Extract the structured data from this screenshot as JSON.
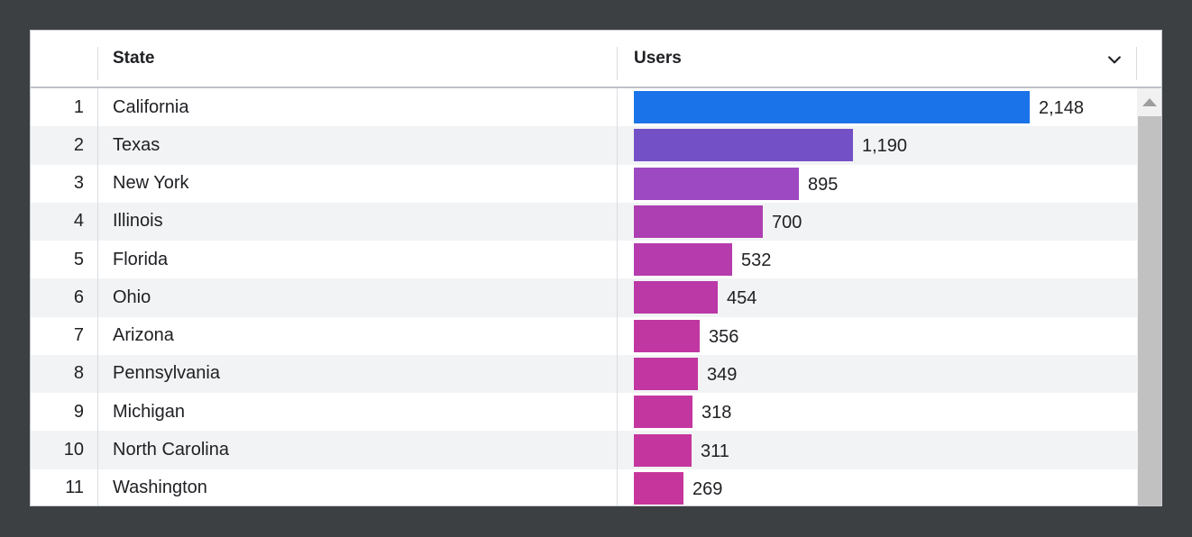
{
  "theme": {
    "surround_bg": "#3c4043",
    "card_bg": "#ffffff",
    "alt_row_bg": "#f1f3f4",
    "divider_color": "#dadce0",
    "header_border_color": "#bdc1c6",
    "text_color": "#202124",
    "scroll_track": "#f1f1f1",
    "scroll_thumb": "#c1c1c1",
    "scroll_arrow": "#9e9e9e"
  },
  "table": {
    "columns": {
      "index_header": "",
      "state_header": "State",
      "users_header": "Users",
      "users_menu_icon": "chevron-down-icon"
    },
    "max_value": 2148,
    "rows": [
      {
        "rank": "1",
        "state": "California",
        "users": "2,148",
        "value": 2148,
        "color": "#1a73e8"
      },
      {
        "rank": "2",
        "state": "Texas",
        "users": "1,190",
        "value": 1190,
        "color": "#7450c6"
      },
      {
        "rank": "3",
        "state": "New York",
        "users": "895",
        "value": 895,
        "color": "#9d49c1"
      },
      {
        "rank": "4",
        "state": "Illinois",
        "users": "700",
        "value": 700,
        "color": "#ad3fb2"
      },
      {
        "rank": "5",
        "state": "Florida",
        "users": "532",
        "value": 532,
        "color": "#b63bac"
      },
      {
        "rank": "6",
        "state": "Ohio",
        "users": "454",
        "value": 454,
        "color": "#bb38a7"
      },
      {
        "rank": "7",
        "state": "Arizona",
        "users": "356",
        "value": 356,
        "color": "#c137a2"
      },
      {
        "rank": "8",
        "state": "Pennsylvania",
        "users": "349",
        "value": 349,
        "color": "#c236a1"
      },
      {
        "rank": "9",
        "state": "Michigan",
        "users": "318",
        "value": 318,
        "color": "#c4369f"
      },
      {
        "rank": "10",
        "state": "North Carolina",
        "users": "311",
        "value": 311,
        "color": "#c5359e"
      },
      {
        "rank": "11",
        "state": "Washington",
        "users": "269",
        "value": 269,
        "color": "#c6359c"
      }
    ]
  },
  "scrollbar": {
    "up_icon": "triangle-up-icon",
    "position": "top"
  },
  "chart_data": {
    "type": "bar",
    "orientation": "horizontal",
    "title": "",
    "xlabel": "Users",
    "ylabel": "State",
    "categories": [
      "California",
      "Texas",
      "New York",
      "Illinois",
      "Florida",
      "Ohio",
      "Arizona",
      "Pennsylvania",
      "Michigan",
      "North Carolina",
      "Washington"
    ],
    "values": [
      2148,
      1190,
      895,
      700,
      532,
      454,
      356,
      349,
      318,
      311,
      269
    ],
    "value_labels": [
      "2,148",
      "1,190",
      "895",
      "700",
      "532",
      "454",
      "356",
      "349",
      "318",
      "311",
      "269"
    ],
    "xlim": [
      0,
      2148
    ],
    "grid": false,
    "legend": false,
    "bar_colors": [
      "#1a73e8",
      "#7450c6",
      "#9d49c1",
      "#ad3fb2",
      "#b63bac",
      "#bb38a7",
      "#c137a2",
      "#c236a1",
      "#c4369f",
      "#c5359e",
      "#c6359c"
    ]
  }
}
